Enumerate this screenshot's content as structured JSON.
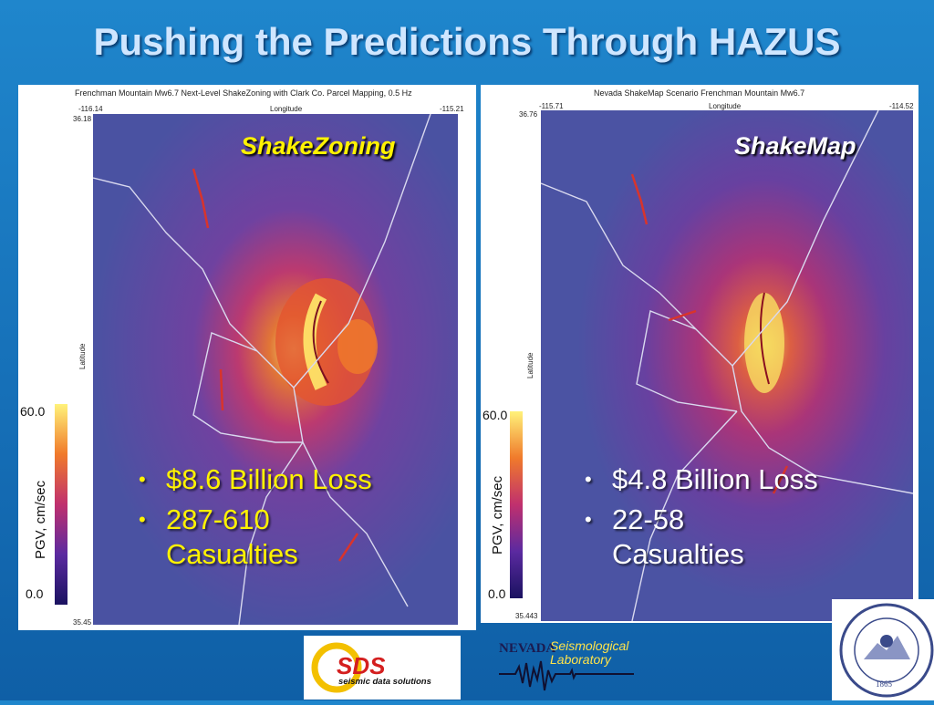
{
  "title": "Pushing the Predictions Through HAZUS",
  "left": {
    "panel_title": "Frenchman Mountain Mw6.7 Next-Level ShakeZoning with Clark Co. Parcel Mapping, 0.5 Hz",
    "lon_min": "-116.14",
    "lon_max": "-115.21",
    "lon_label": "Longitude",
    "lat_max": "36.18",
    "lat_min": "35.45",
    "lat_label": "Latitude",
    "label": "ShakeZoning",
    "cb_top": "60.0",
    "cb_bottom": "0.0",
    "cb_label": "PGV, cm/sec",
    "bullets": [
      "$8.6 Billion Loss",
      "287-610\nCasualties"
    ]
  },
  "right": {
    "panel_title": "Nevada ShakeMap Scenario Frenchman Mountain Mw6.7",
    "lon_min": "-115.71",
    "lon_max": "-114.52",
    "lon_label": "Longitude",
    "lat_max": "36.76",
    "lat_min": "35.443",
    "lat_label": "Latitude",
    "label": "ShakeMap",
    "cb_top": "60.0",
    "cb_bottom": "0.0",
    "cb_label": "PGV, cm/sec",
    "corner": "B",
    "bullets": [
      "$4.8 Billion Loss",
      "22-58\nCasualties"
    ]
  },
  "logos": {
    "sds_main": "SDS",
    "sds_sub": "seismic data solutions",
    "nevada": "NEVADA",
    "seis1": "Seismological",
    "seis2": "Laboratory",
    "seal_year": "1865"
  },
  "colors": {
    "accent": "#fff200",
    "bg": "#1670b8"
  }
}
